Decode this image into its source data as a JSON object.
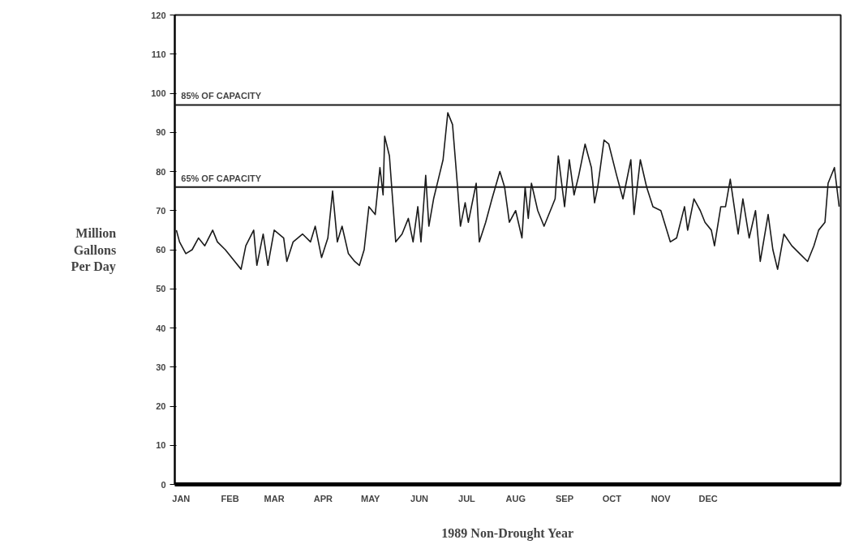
{
  "chart_data": {
    "type": "line",
    "xlabel": "1989 Non-Drought Year",
    "ylabel": "Million Gallons Per Day",
    "x": [
      "1988-12-29",
      "1988-12-31",
      "1989-01-04",
      "1989-01-08",
      "1989-01-12",
      "1989-01-16",
      "1989-01-21",
      "1989-01-24",
      "1989-01-29",
      "1989-02-04",
      "1989-02-08",
      "1989-02-11",
      "1989-02-16",
      "1989-02-18",
      "1989-02-22",
      "1989-02-25",
      "1989-03-01",
      "1989-03-07",
      "1989-03-09",
      "1989-03-13",
      "1989-03-19",
      "1989-03-24",
      "1989-03-27",
      "1989-03-31",
      "1989-04-04",
      "1989-04-07",
      "1989-04-10",
      "1989-04-13",
      "1989-04-17",
      "1989-04-21",
      "1989-04-24",
      "1989-04-27",
      "1989-04-30",
      "1989-05-04",
      "1989-05-07",
      "1989-05-09",
      "1989-05-10",
      "1989-05-13",
      "1989-05-17",
      "1989-05-21",
      "1989-05-25",
      "1989-05-28",
      "1989-05-31",
      "1989-06-02",
      "1989-06-05",
      "1989-06-07",
      "1989-06-10",
      "1989-06-13",
      "1989-06-16",
      "1989-06-19",
      "1989-06-22",
      "1989-06-25",
      "1989-06-27",
      "1989-06-30",
      "1989-07-02",
      "1989-07-07",
      "1989-07-09",
      "1989-07-13",
      "1989-07-17",
      "1989-07-22",
      "1989-07-25",
      "1989-07-28",
      "1989-08-01",
      "1989-08-05",
      "1989-08-07",
      "1989-08-09",
      "1989-08-11",
      "1989-08-15",
      "1989-08-19",
      "1989-08-24",
      "1989-08-26",
      "1989-08-28",
      "1989-09-01",
      "1989-09-04",
      "1989-09-07",
      "1989-09-10",
      "1989-09-14",
      "1989-09-18",
      "1989-09-20",
      "1989-09-22",
      "1989-09-26",
      "1989-09-29",
      "1989-10-04",
      "1989-10-08",
      "1989-10-13",
      "1989-10-15",
      "1989-10-19",
      "1989-10-23",
      "1989-10-27",
      "1989-11-01",
      "1989-11-07",
      "1989-11-11",
      "1989-11-16",
      "1989-11-18",
      "1989-11-22",
      "1989-11-26",
      "1989-11-29",
      "1989-12-03",
      "1989-12-05",
      "1989-12-09",
      "1989-12-12",
      "1989-12-15",
      "1989-12-20",
      "1989-12-23",
      "1989-12-27",
      "1989-12-31",
      "1990-01-03",
      "1990-01-08",
      "1990-01-11",
      "1990-01-14",
      "1990-01-18",
      "1990-01-23",
      "1990-01-28",
      "1990-02-02",
      "1990-02-06",
      "1990-02-09",
      "1990-02-13",
      "1990-02-15",
      "1990-02-19",
      "1990-02-22"
    ],
    "series": [
      {
        "color": "#1a1a1a",
        "values": [
          65,
          62,
          59,
          60,
          63,
          61,
          65,
          62,
          60,
          57,
          55,
          61,
          65,
          56,
          64,
          56,
          65,
          63,
          57,
          62,
          64,
          62,
          66,
          58,
          63,
          75,
          62,
          66,
          59,
          57,
          56,
          60,
          71,
          69,
          81,
          74,
          89,
          84,
          62,
          64,
          68,
          62,
          71,
          62,
          79,
          66,
          73,
          78,
          83,
          95,
          92,
          77,
          66,
          72,
          67,
          77,
          62,
          67,
          73,
          80,
          76,
          67,
          70,
          63,
          76,
          68,
          77,
          70,
          66,
          71,
          73,
          84,
          71,
          83,
          74,
          79,
          87,
          81,
          72,
          76,
          88,
          87,
          79,
          73,
          83,
          69,
          83,
          76,
          71,
          70,
          62,
          63,
          71,
          65,
          73,
          70,
          67,
          65,
          61,
          71,
          71,
          78,
          64,
          73,
          63,
          70,
          57,
          69,
          60,
          55,
          64,
          61,
          59,
          57,
          61,
          65,
          67,
          77,
          81,
          71
        ]
      }
    ],
    "xlim": [
      "1988-12-28",
      "1990-02-23"
    ],
    "ylim": [
      0,
      120
    ],
    "xticks": [
      {
        "value": "1989-01-01",
        "label": "JAN"
      },
      {
        "value": "1989-02-01",
        "label": "FEB"
      },
      {
        "value": "1989-03-01",
        "label": "MAR"
      },
      {
        "value": "1989-04-01",
        "label": "APR"
      },
      {
        "value": "1989-05-01",
        "label": "MAY"
      },
      {
        "value": "1989-06-01",
        "label": "JUN"
      },
      {
        "value": "1989-07-01",
        "label": "JUL"
      },
      {
        "value": "1989-08-01",
        "label": "AUG"
      },
      {
        "value": "1989-09-01",
        "label": "SEP"
      },
      {
        "value": "1989-10-01",
        "label": "OCT"
      },
      {
        "value": "1989-11-01",
        "label": "NOV"
      },
      {
        "value": "1989-12-01",
        "label": "DEC"
      }
    ],
    "yticks": [
      0,
      10,
      20,
      30,
      40,
      50,
      60,
      70,
      80,
      90,
      100,
      110,
      120
    ],
    "ref_lines": [
      {
        "axis": "y",
        "value": 97,
        "label": "85% OF CAPACITY",
        "color": "#1a1a1a"
      },
      {
        "axis": "y",
        "value": 76,
        "label": "65% OF CAPACITY",
        "color": "#1a1a1a"
      }
    ],
    "grid": false,
    "line_style": "solid"
  }
}
